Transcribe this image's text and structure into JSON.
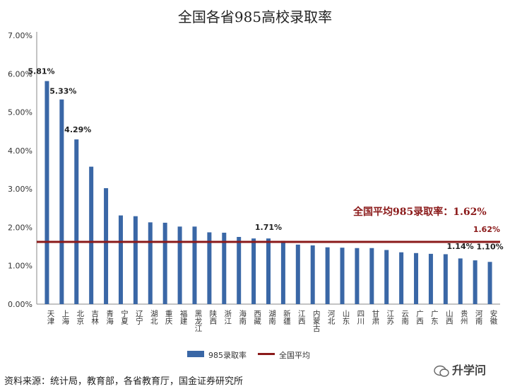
{
  "title": "全国各省985高校录取率",
  "source": "资料来源：统计局，教育部，各省教育厅，国金证券研究所",
  "brand": "升学问",
  "colors": {
    "bar": "#3a67a6",
    "avg_line": "#8b1a1a",
    "grid": "#d9d9d9"
  },
  "chart_data": {
    "type": "bar",
    "categories": [
      "天津",
      "上海",
      "北京",
      "吉林",
      "青海",
      "宁夏",
      "辽宁",
      "湖北",
      "重庆",
      "福建",
      "黑龙江",
      "陕西",
      "浙江",
      "海南",
      "西藏",
      "湖南",
      "新疆",
      "江西",
      "内蒙古",
      "河北",
      "山东",
      "四川",
      "甘肃",
      "江苏",
      "云南",
      "广西",
      "广东",
      "山西",
      "贵州",
      "河南",
      "安徽"
    ],
    "series": [
      {
        "name": "985录取率",
        "values": [
          5.81,
          5.33,
          4.29,
          3.58,
          3.02,
          2.31,
          2.29,
          2.13,
          2.12,
          2.02,
          2.02,
          1.87,
          1.86,
          1.75,
          1.71,
          1.71,
          1.65,
          1.55,
          1.53,
          1.48,
          1.47,
          1.46,
          1.46,
          1.41,
          1.35,
          1.33,
          1.31,
          1.3,
          1.19,
          1.14,
          1.1
        ]
      },
      {
        "name": "全国平均",
        "type": "line",
        "value": 1.62
      }
    ],
    "ylim": [
      0,
      7
    ],
    "yticks": [
      "0.00%",
      "1.00%",
      "2.00%",
      "3.00%",
      "4.00%",
      "5.00%",
      "6.00%",
      "7.00%"
    ],
    "grid": false,
    "legend": "bottom",
    "data_labels": [
      {
        "index": 0,
        "text": "5.81%"
      },
      {
        "index": 1,
        "text": "5.33%"
      },
      {
        "index": 2,
        "text": "4.29%"
      },
      {
        "index": 15,
        "text": "1.71%"
      },
      {
        "index": 29,
        "text": "1.14%"
      },
      {
        "index": 30,
        "text": "1.10%"
      }
    ],
    "avg_annotation": "全国平均985录取率：1.62%",
    "avg_label": "1.62%"
  }
}
